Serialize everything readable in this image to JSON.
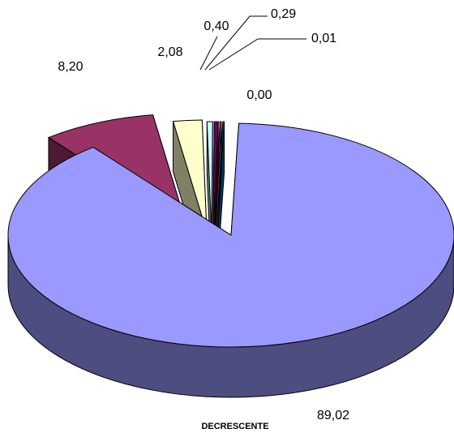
{
  "chart_data": {
    "type": "pie",
    "style": "3d-exploded",
    "caption": "DECRESCENTE",
    "slices": [
      {
        "value": 89.02,
        "label": "89,02",
        "color": "#9999FF",
        "side_color": "#4D4D80"
      },
      {
        "value": 8.2,
        "label": "8,20",
        "color": "#993366",
        "side_color": "#4D1A33"
      },
      {
        "value": 2.08,
        "label": "2,08",
        "color": "#FFFFCC",
        "side_color": "#808066"
      },
      {
        "value": 0.4,
        "label": "0,40",
        "color": "#CCFFFF",
        "side_color": "#668080"
      },
      {
        "value": 0.29,
        "label": "0,29",
        "color": "#660066",
        "side_color": "#330033"
      },
      {
        "value": 0.01,
        "label": "0,01",
        "color": "#FF8080",
        "side_color": "#804040"
      },
      {
        "value": 0.0,
        "label": "0,00",
        "color": "#0066CC",
        "side_color": "#003366"
      }
    ]
  }
}
